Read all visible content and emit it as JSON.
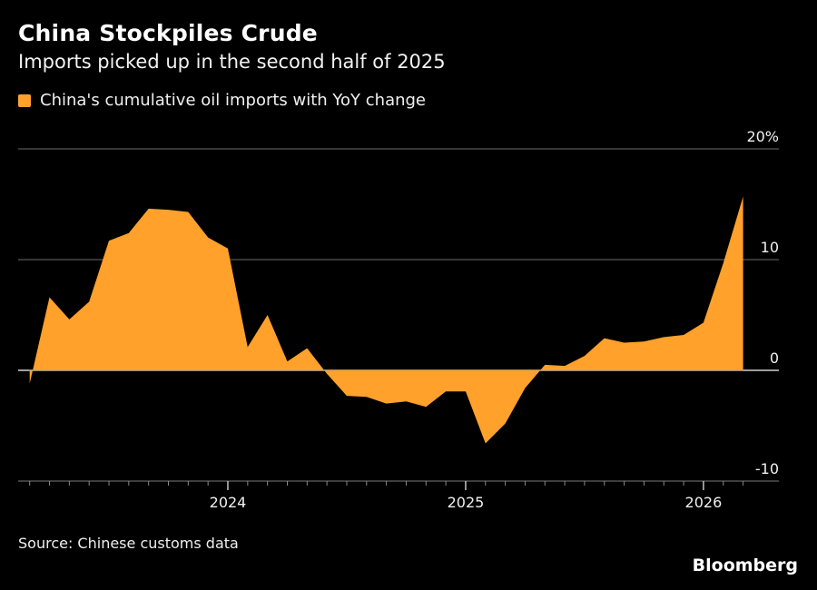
{
  "header": {
    "title": "China Stockpiles Crude",
    "subtitle": "Imports picked up in the second half of 2025"
  },
  "legend": {
    "label": "China's cumulative oil imports with YoY change",
    "color": "#FFA12B"
  },
  "footer": {
    "source": "Source: Chinese customs data",
    "brand": "Bloomberg"
  },
  "chart_data": {
    "type": "area",
    "title": "China Stockpiles Crude",
    "subtitle": "Imports picked up in the second half of 2025",
    "xlabel": "",
    "ylabel": "",
    "legend": [
      "China's cumulative oil imports with YoY change"
    ],
    "legend_position": "top-left",
    "ylim": [
      -10,
      20
    ],
    "yticks": [
      -10,
      0,
      10,
      20
    ],
    "ytick_labels": [
      "-10",
      "0",
      "10",
      "20%"
    ],
    "y_axis_side": "right",
    "grid": true,
    "xtick_labels": [
      "2024",
      "2025",
      "2026"
    ],
    "x": [
      "2023-03",
      "2023-04",
      "2023-05",
      "2023-06",
      "2023-07",
      "2023-08",
      "2023-09",
      "2023-10",
      "2023-11",
      "2023-12",
      "2024-01",
      "2024-02",
      "2024-03",
      "2024-04",
      "2024-05",
      "2024-06",
      "2024-07",
      "2024-08",
      "2024-09",
      "2024-10",
      "2024-11",
      "2024-12",
      "2025-01",
      "2025-02",
      "2025-03",
      "2025-04",
      "2025-05",
      "2025-06",
      "2025-07",
      "2025-08",
      "2025-09",
      "2025-10",
      "2025-11",
      "2025-12",
      "2026-01",
      "2026-02",
      "2026-03"
    ],
    "series": [
      {
        "name": "China's cumulative oil imports with YoY change",
        "color": "#FFA12B",
        "values": [
          -1.2,
          6.6,
          4.6,
          6.2,
          11.7,
          12.4,
          14.6,
          14.5,
          14.3,
          12.0,
          11.0,
          2.1,
          5.0,
          0.8,
          2.0,
          -0.3,
          -2.3,
          -2.4,
          -3.0,
          -2.8,
          -3.3,
          -1.9,
          -1.9,
          -6.6,
          -4.8,
          -1.6,
          0.5,
          0.4,
          1.3,
          2.9,
          2.5,
          2.6,
          3.0,
          3.2,
          4.3,
          9.7,
          15.7
        ]
      }
    ]
  }
}
